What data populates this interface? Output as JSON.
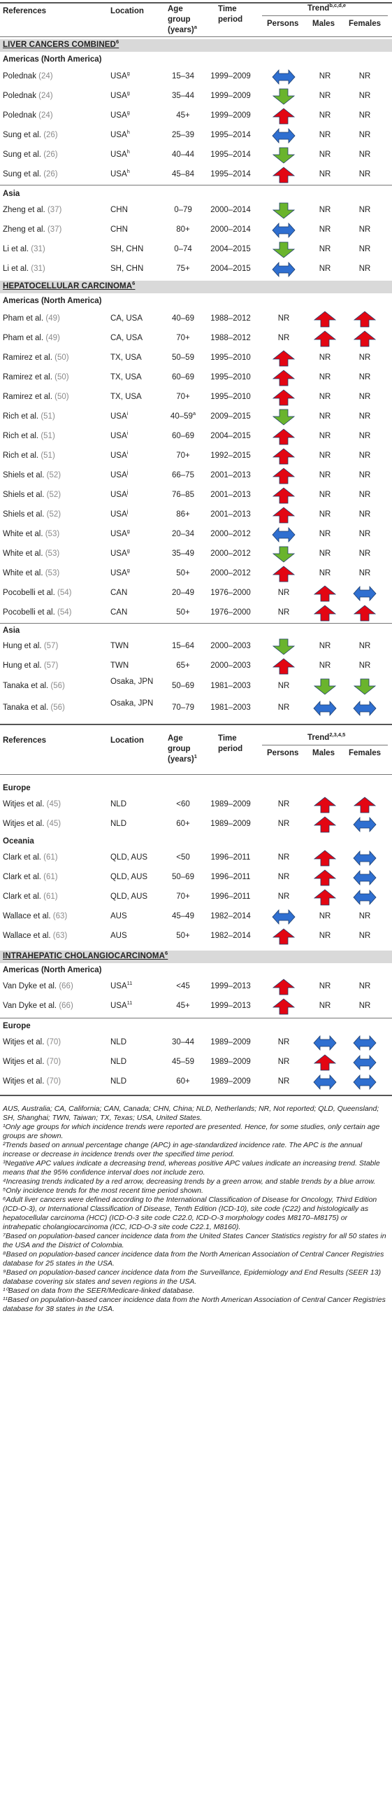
{
  "header": {
    "references": "References",
    "location": "Location",
    "age_line1": "Age",
    "age_line2": "group",
    "age_line3": "(years)",
    "age_sup": "a",
    "time_line1": "Time",
    "time_line2": "period",
    "trend": "Trend",
    "trend_sup": "b,c,d,e",
    "persons": "Persons",
    "males": "Males",
    "females": "Females"
  },
  "header2": {
    "references": "References",
    "location": "Location",
    "age_line1": "Age",
    "age_line2": "group",
    "age_line3": "(years)",
    "age_sup": "1",
    "time_line1": "Time",
    "time_line2": "period",
    "trend": "Trend",
    "trend_sup": "2,3,4,5",
    "persons": "Persons",
    "males": "Males",
    "females": "Females"
  },
  "arrow_colors": {
    "increase": "#e30613",
    "decrease": "#6ab42d",
    "stable": "#2f6fd0"
  },
  "nr_label": "NR",
  "sections": [
    {
      "title": "LIVER CANCERS COMBINED",
      "sup": "6"
    },
    {
      "title": "HEPATOCELLULAR CARCINOMA",
      "sup": "6"
    },
    {
      "title": "INTRAHEPATIC CHOLANGIOCARCINOMA",
      "sup": "6"
    }
  ],
  "regions": [
    "Americas (North America)",
    "Asia",
    "Americas (North America)",
    "Asia",
    "Europe",
    "Oceania",
    "Americas (North America)",
    "Europe"
  ],
  "rows": [
    {
      "ref": "Polednak",
      "cite": "(24)",
      "loc": "USA",
      "locsup": "g",
      "age": "15–34",
      "period": "1999–2009",
      "p": "S",
      "m": "NR",
      "f": "NR"
    },
    {
      "ref": "Polednak",
      "cite": "(24)",
      "loc": "USA",
      "locsup": "g",
      "age": "35–44",
      "period": "1999–2009",
      "p": "D",
      "m": "NR",
      "f": "NR"
    },
    {
      "ref": "Polednak",
      "cite": "(24)",
      "loc": "USA",
      "locsup": "g",
      "age": "45+",
      "period": "1999–2009",
      "p": "I",
      "m": "NR",
      "f": "NR"
    },
    {
      "ref": "Sung et al.",
      "cite": "(26)",
      "loc": "USA",
      "locsup": "h",
      "age": "25–39",
      "period": "1995–2014",
      "p": "S",
      "m": "NR",
      "f": "NR"
    },
    {
      "ref": "Sung et al.",
      "cite": "(26)",
      "loc": "USA",
      "locsup": "h",
      "age": "40–44",
      "period": "1995–2014",
      "p": "D",
      "m": "NR",
      "f": "NR"
    },
    {
      "ref": "Sung et al.",
      "cite": "(26)",
      "loc": "USA",
      "locsup": "h",
      "age": "45–84",
      "period": "1995–2014",
      "p": "I",
      "m": "NR",
      "f": "NR"
    },
    {
      "ref": "Zheng et al.",
      "cite": "(37)",
      "loc": "CHN",
      "locsup": "",
      "age": "0–79",
      "period": "2000–2014",
      "p": "D",
      "m": "NR",
      "f": "NR"
    },
    {
      "ref": "Zheng et al.",
      "cite": "(37)",
      "loc": "CHN",
      "locsup": "",
      "age": "80+",
      "period": "2000–2014",
      "p": "S",
      "m": "NR",
      "f": "NR"
    },
    {
      "ref": "Li et al.",
      "cite": "(31)",
      "loc": "SH, CHN",
      "locsup": "",
      "age": "0–74",
      "period": "2004–2015",
      "p": "D",
      "m": "NR",
      "f": "NR"
    },
    {
      "ref": "Li et al.",
      "cite": "(31)",
      "loc": "SH, CHN",
      "locsup": "",
      "age": "75+",
      "period": "2004–2015",
      "p": "S",
      "m": "NR",
      "f": "NR"
    },
    {
      "ref": "Pham et al.",
      "cite": "(49)",
      "loc": "CA, USA",
      "locsup": "",
      "age": "40–69",
      "period": "1988–2012",
      "p": "NR",
      "m": "I",
      "f": "I"
    },
    {
      "ref": "Pham et al.",
      "cite": "(49)",
      "loc": "CA, USA",
      "locsup": "",
      "age": "70+",
      "period": "1988–2012",
      "p": "NR",
      "m": "I",
      "f": "I"
    },
    {
      "ref": "Ramirez et al.",
      "cite": "(50)",
      "loc": "TX, USA",
      "locsup": "",
      "age": "50–59",
      "period": "1995–2010",
      "p": "I",
      "m": "NR",
      "f": "NR"
    },
    {
      "ref": "Ramirez et al.",
      "cite": "(50)",
      "loc": "TX, USA",
      "locsup": "",
      "age": "60–69",
      "period": "1995–2010",
      "p": "I",
      "m": "NR",
      "f": "NR"
    },
    {
      "ref": "Ramirez et al.",
      "cite": "(50)",
      "loc": "TX, USA",
      "locsup": "",
      "age": "70+",
      "period": "1995–2010",
      "p": "I",
      "m": "NR",
      "f": "NR"
    },
    {
      "ref": "Rich et al.",
      "cite": "(51)",
      "loc": "USA",
      "locsup": "i",
      "age": "40–59",
      "agesup": "a",
      "period": "2009–2015",
      "p": "D",
      "m": "NR",
      "f": "NR"
    },
    {
      "ref": "Rich et al.",
      "cite": "(51)",
      "loc": "USA",
      "locsup": "i",
      "age": "60–69",
      "period": "2004–2015",
      "p": "I",
      "m": "NR",
      "f": "NR"
    },
    {
      "ref": "Rich et al.",
      "cite": "(51)",
      "loc": "USA",
      "locsup": "i",
      "age": "70+",
      "period": "1992–2015",
      "p": "I",
      "m": "NR",
      "f": "NR"
    },
    {
      "ref": "Shiels et al.",
      "cite": "(52)",
      "loc": "USA",
      "locsup": "j",
      "age": "66–75",
      "period": "2001–2013",
      "p": "I",
      "m": "NR",
      "f": "NR"
    },
    {
      "ref": "Shiels et al.",
      "cite": "(52)",
      "loc": "USA",
      "locsup": "j",
      "age": "76–85",
      "period": "2001–2013",
      "p": "I",
      "m": "NR",
      "f": "NR"
    },
    {
      "ref": "Shiels et al.",
      "cite": "(52)",
      "loc": "USA",
      "locsup": "j",
      "age": "86+",
      "period": "2001–2013",
      "p": "I",
      "m": "NR",
      "f": "NR"
    },
    {
      "ref": "White et al.",
      "cite": "(53)",
      "loc": "USA",
      "locsup": "g",
      "age": "20–34",
      "period": "2000–2012",
      "p": "S",
      "m": "NR",
      "f": "NR"
    },
    {
      "ref": "White et al.",
      "cite": "(53)",
      "loc": "USA",
      "locsup": "g",
      "age": "35–49",
      "period": "2000–2012",
      "p": "D",
      "m": "NR",
      "f": "NR"
    },
    {
      "ref": "White et al.",
      "cite": "(53)",
      "loc": "USA",
      "locsup": "g",
      "age": "50+",
      "period": "2000–2012",
      "p": "I",
      "m": "NR",
      "f": "NR"
    },
    {
      "ref": "Pocobelli et al.",
      "cite": "(54)",
      "loc": "CAN",
      "locsup": "",
      "age": "20–49",
      "period": "1976–2000",
      "p": "NR",
      "m": "I",
      "f": "S"
    },
    {
      "ref": "Pocobelli et al.",
      "cite": "(54)",
      "loc": "CAN",
      "locsup": "",
      "age": "50+",
      "period": "1976–2000",
      "p": "NR",
      "m": "I",
      "f": "I"
    },
    {
      "ref": "Hung et al.",
      "cite": "(57)",
      "loc": "TWN",
      "locsup": "",
      "age": "15–64",
      "period": "2000–2003",
      "p": "D",
      "m": "NR",
      "f": "NR"
    },
    {
      "ref": "Hung et al.",
      "cite": "(57)",
      "loc": "TWN",
      "locsup": "",
      "age": "65+",
      "period": "2000–2003",
      "p": "I",
      "m": "NR",
      "f": "NR"
    },
    {
      "ref": "Tanaka et al.",
      "cite": "(56)",
      "loc": "Osaka, JPN",
      "locsup": "",
      "age": "50–69",
      "period": "1981–2003",
      "p": "NR",
      "m": "D",
      "f": "D"
    },
    {
      "ref": "Tanaka et al.",
      "cite": "(56)",
      "loc": "Osaka, JPN",
      "locsup": "",
      "age": "70–79",
      "period": "1981–2003",
      "p": "NR",
      "m": "S",
      "f": "S"
    },
    {
      "ref": "Witjes et al.",
      "cite": "(45)",
      "loc": "NLD",
      "locsup": "",
      "age": "<60",
      "period": "1989–2009",
      "p": "NR",
      "m": "I",
      "f": "I"
    },
    {
      "ref": "Witjes et al.",
      "cite": "(45)",
      "loc": "NLD",
      "locsup": "",
      "age": "60+",
      "period": "1989–2009",
      "p": "NR",
      "m": "I",
      "f": "S"
    },
    {
      "ref": "Clark et al.",
      "cite": "(61)",
      "loc": "QLD, AUS",
      "locsup": "",
      "age": "<50",
      "period": "1996–2011",
      "p": "NR",
      "m": "I",
      "f": "S"
    },
    {
      "ref": "Clark et al.",
      "cite": "(61)",
      "loc": "QLD, AUS",
      "locsup": "",
      "age": "50–69",
      "period": "1996–2011",
      "p": "NR",
      "m": "I",
      "f": "S"
    },
    {
      "ref": "Clark et al.",
      "cite": "(61)",
      "loc": "QLD, AUS",
      "locsup": "",
      "age": "70+",
      "period": "1996–2011",
      "p": "NR",
      "m": "I",
      "f": "S"
    },
    {
      "ref": "Wallace et al.",
      "cite": "(63)",
      "loc": "AUS",
      "locsup": "",
      "age": "45–49",
      "period": "1982–2014",
      "p": "S",
      "m": "NR",
      "f": "NR"
    },
    {
      "ref": "Wallace et al.",
      "cite": "(63)",
      "loc": "AUS",
      "locsup": "",
      "age": "50+",
      "period": "1982–2014",
      "p": "I",
      "m": "NR",
      "f": "NR"
    },
    {
      "ref": "Van Dyke et al.",
      "cite": "(66)",
      "loc": "USA",
      "locsup": "11",
      "age": "<45",
      "period": "1999–2013",
      "p": "I",
      "m": "NR",
      "f": "NR"
    },
    {
      "ref": "Van Dyke et al.",
      "cite": "(66)",
      "loc": "USA",
      "locsup": "11",
      "age": "45+",
      "period": "1999–2013",
      "p": "I",
      "m": "NR",
      "f": "NR"
    },
    {
      "ref": "Witjes et al.",
      "cite": "(70)",
      "loc": "NLD",
      "locsup": "",
      "age": "30–44",
      "period": "1989–2009",
      "p": "NR",
      "m": "S",
      "f": "S"
    },
    {
      "ref": "Witjes et al.",
      "cite": "(70)",
      "loc": "NLD",
      "locsup": "",
      "age": "45–59",
      "period": "1989–2009",
      "p": "NR",
      "m": "I",
      "f": "S"
    },
    {
      "ref": "Witjes et al.",
      "cite": "(70)",
      "loc": "NLD",
      "locsup": "",
      "age": "60+",
      "period": "1989–2009",
      "p": "NR",
      "m": "S",
      "f": "S"
    }
  ],
  "footnotes": [
    "AUS, Australia; CA, California; CAN, Canada; CHN, China; NLD, Netherlands; NR, Not reported; QLD, Queensland; SH, Shanghai; TWN, Taiwan; TX, Texas; USA, United States.",
    "¹Only age groups for which incidence trends were reported are presented. Hence, for some studies, only certain age groups are shown.",
    "²Trends based on annual percentage change (APC) in age-standardized incidence rate. The APC is the annual increase or decrease in incidence trends over the specified time period.",
    "³Negative APC values indicate a decreasing trend, whereas positive APC values indicate an increasing trend. Stable means that the 95% confidence interval does not include zero.",
    "⁴Increasing trends indicated by a red arrow, decreasing trends by a green arrow, and stable trends by a blue arrow.",
    "⁵Only incidence trends for the most recent time period shown.",
    "⁶Adult liver cancers were defined according to the International Classification of Disease for Oncology, Third Edition (ICD-O-3), or International Classification of Disease, Tenth Edition (ICD-10), site code (C22) and histologically as hepatocellular carcinoma (HCC) (ICD-O-3 site code C22.0, ICD-O-3 morphology codes M8170–M8175) or intrahepatic cholangiocarcinoma (ICC, ICD-O-3 site code C22.1, M8160).",
    "⁷Based on population-based cancer incidence data from the United States Cancer Statistics registry for all 50 states in the USA and the District of Colombia.",
    "⁸Based on population-based cancer incidence data from the North American Association of Central Cancer Registries database for 25 states in the USA.",
    "⁹Based on population-based cancer incidence data from the Surveillance, Epidemiology and End Results (SEER 13) database covering six states and seven regions in the USA.",
    "¹⁰Based on data from the SEER/Medicare-linked database.",
    "¹¹Based on population-based cancer incidence data from the North American Association of Central Cancer Registries database for 38 states in the USA."
  ]
}
